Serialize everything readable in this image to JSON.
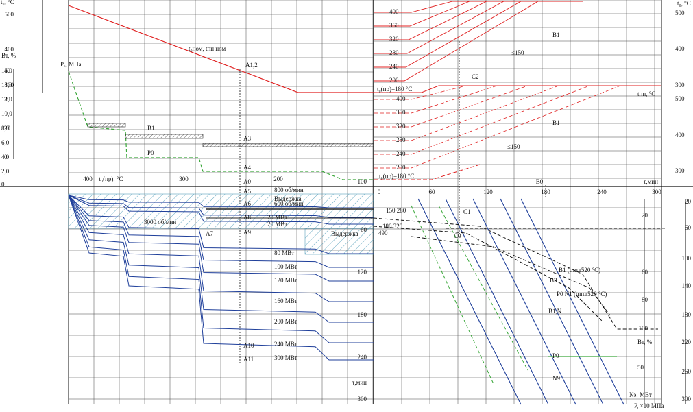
{
  "labels": [
    "t₀, °C",
    "500",
    "400",
    "300",
    "Pₒ, МПа",
    "16,0",
    "14,0",
    "12,0",
    "10,0",
    "8,0",
    "6,0",
    "4,0",
    "2,0",
    "0",
    "Bт, %",
    "40",
    "30",
    "20",
    "0",
    "t₀ном, tпп ном",
    "A1,2",
    "A3",
    "A4",
    "A0",
    "A5",
    "A6",
    "A7",
    "A8",
    "A9",
    "A10",
    "A11",
    "B1",
    "P0",
    "400",
    "t₀(пр), °C",
    "300",
    "200",
    "100",
    "800 об/мин",
    "600 об/мин",
    "3000 об/мин",
    "Выдержка",
    "20 МВт",
    "20 МВт",
    "Выдержка",
    "80 МВт",
    "100 МВт",
    "120 МВт",
    "160 МВт",
    "200 МВт",
    "240 МВт",
    "300 МВт",
    "60",
    "120",
    "180",
    "240",
    "300",
    "τ,мин",
    "400",
    "360",
    "320",
    "280",
    "240",
    "200",
    "t₀(пр)=180 °C",
    "400",
    "360",
    "320",
    "280",
    "240",
    "200",
    "t₀(пр)=180 °C",
    "B1",
    "C2",
    "≤150",
    "B1",
    "≤150",
    "tпп, °C",
    "t₀, °C",
    "500",
    "400",
    "300",
    "500",
    "400",
    "300",
    "0",
    "60",
    "120",
    "B0",
    "180",
    "240",
    "300",
    "τ,мин",
    "C1",
    "C0",
    "150 280",
    "180 320",
    "490",
    "B3",
    "B1 (tпп≥520 °C)",
    "B1,N",
    "P0 N1 (tпп≥520 °C)",
    "Bт, %",
    "50",
    "N9",
    "P0",
    "Nэ, МВт",
    "P, ×10 МПа",
    "20",
    "60",
    "100",
    "140",
    "180",
    "220",
    "260",
    "300",
    "20",
    "60",
    "80",
    "100"
  ]
}
